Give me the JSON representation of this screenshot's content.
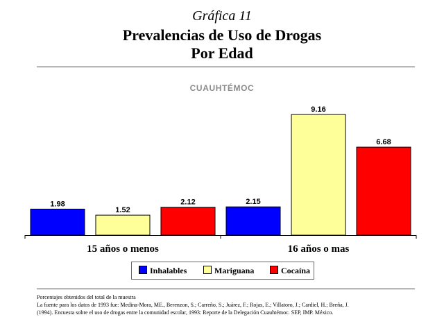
{
  "header": {
    "label": "Gráfica 11",
    "title_line1": "Prevalencias de Uso de Drogas",
    "title_line2": "Por Edad"
  },
  "chart_data": {
    "type": "bar",
    "title": "CUAUHTÉMOC",
    "categories": [
      "15 años o menos",
      "16 años o mas"
    ],
    "series": [
      {
        "name": "Inhalables",
        "values": [
          1.98,
          2.15
        ],
        "color": "#0000ff"
      },
      {
        "name": "Mariguana",
        "values": [
          1.52,
          9.16
        ],
        "color": "#ffff99"
      },
      {
        "name": "Cocaína",
        "values": [
          2.12,
          6.68
        ],
        "color": "#ff0000"
      }
    ],
    "value_labels": [
      [
        "1.98",
        "2.15"
      ],
      [
        "1.52",
        "9.16"
      ],
      [
        "2.12",
        "6.68"
      ]
    ],
    "ylim": [
      0,
      10
    ],
    "grid": false,
    "legend_position": "bottom"
  },
  "footer": {
    "note": "Porcentajes obtenidos del total de la muestra",
    "source_line1": "La fuente para los datos de 1993 fue: Medina-Mora, ME., Berenzon, S.; Carreño, S.; Juárez, F.; Rojas, E.; Villatoro, J.; Cardiel, H.; Breña, J.",
    "source_line2": "(1994). Encuesta sobre el uso de drogas entre la comunidad escolar, 1993: Reporte de la Delegación Cuauhtémoc. SEP, IMP. México."
  }
}
